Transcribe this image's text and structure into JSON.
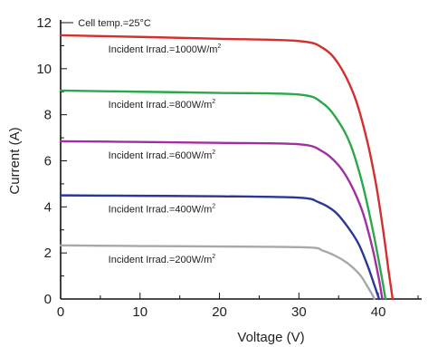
{
  "chart_data": {
    "type": "line",
    "title": "",
    "xlabel": "Voltage (V)",
    "ylabel": "Current (A)",
    "xlim": [
      0,
      45
    ],
    "ylim": [
      0,
      12
    ],
    "x_ticks": [
      0,
      10,
      20,
      30,
      40
    ],
    "y_ticks": [
      0,
      2,
      4,
      6,
      8,
      10,
      12
    ],
    "grid": false,
    "annotation": "Cell temp.=25°C",
    "series": [
      {
        "label_main": "Incident Irrad.=1000W/m",
        "label_sup": "2",
        "color": "#d42e2e",
        "points": [
          [
            0,
            11.45
          ],
          [
            10,
            11.38
          ],
          [
            20,
            11.3
          ],
          [
            30,
            11.2
          ],
          [
            33,
            10.9
          ],
          [
            35,
            10.2
          ],
          [
            37,
            8.8
          ],
          [
            38.5,
            7.0
          ],
          [
            39.7,
            5.0
          ],
          [
            40.6,
            3.0
          ],
          [
            41.3,
            1.2
          ],
          [
            41.8,
            0
          ]
        ]
      },
      {
        "label_main": "Incident Irrad.=800W/m",
        "label_sup": "2",
        "color": "#2ba84a",
        "points": [
          [
            0,
            9.05
          ],
          [
            10,
            9.0
          ],
          [
            20,
            8.95
          ],
          [
            30,
            8.88
          ],
          [
            33,
            8.5
          ],
          [
            35,
            7.7
          ],
          [
            36.5,
            6.7
          ],
          [
            38,
            5.0
          ],
          [
            39.3,
            3.0
          ],
          [
            40.3,
            1.2
          ],
          [
            40.9,
            0
          ]
        ]
      },
      {
        "label_main": "Incident Irrad.=600W/m",
        "label_sup": "2",
        "color": "#a02fa0",
        "points": [
          [
            0,
            6.85
          ],
          [
            10,
            6.82
          ],
          [
            20,
            6.78
          ],
          [
            30,
            6.72
          ],
          [
            33,
            6.4
          ],
          [
            35,
            5.8
          ],
          [
            36.5,
            5.0
          ],
          [
            38,
            3.8
          ],
          [
            39.2,
            2.3
          ],
          [
            40,
            1.0
          ],
          [
            40.5,
            0
          ]
        ]
      },
      {
        "label_main": "Incident Irrad.=400W/m",
        "label_sup": "2",
        "color": "#2b3699",
        "points": [
          [
            0,
            4.5
          ],
          [
            10,
            4.48
          ],
          [
            20,
            4.46
          ],
          [
            30,
            4.4
          ],
          [
            32.5,
            4.2
          ],
          [
            34.5,
            3.8
          ],
          [
            36,
            3.2
          ],
          [
            37.5,
            2.4
          ],
          [
            38.7,
            1.4
          ],
          [
            39.5,
            0.6
          ],
          [
            40.1,
            0
          ]
        ]
      },
      {
        "label_main": "Incident Irrad.=200W/m",
        "label_sup": "2",
        "color": "#a5a8ad",
        "points": [
          [
            0,
            2.33
          ],
          [
            10,
            2.3
          ],
          [
            20,
            2.28
          ],
          [
            31,
            2.24
          ],
          [
            33,
            2.1
          ],
          [
            35,
            1.8
          ],
          [
            36.5,
            1.45
          ],
          [
            37.8,
            1.0
          ],
          [
            38.7,
            0.5
          ],
          [
            39.3,
            0.15
          ],
          [
            39.5,
            0
          ]
        ]
      }
    ]
  }
}
